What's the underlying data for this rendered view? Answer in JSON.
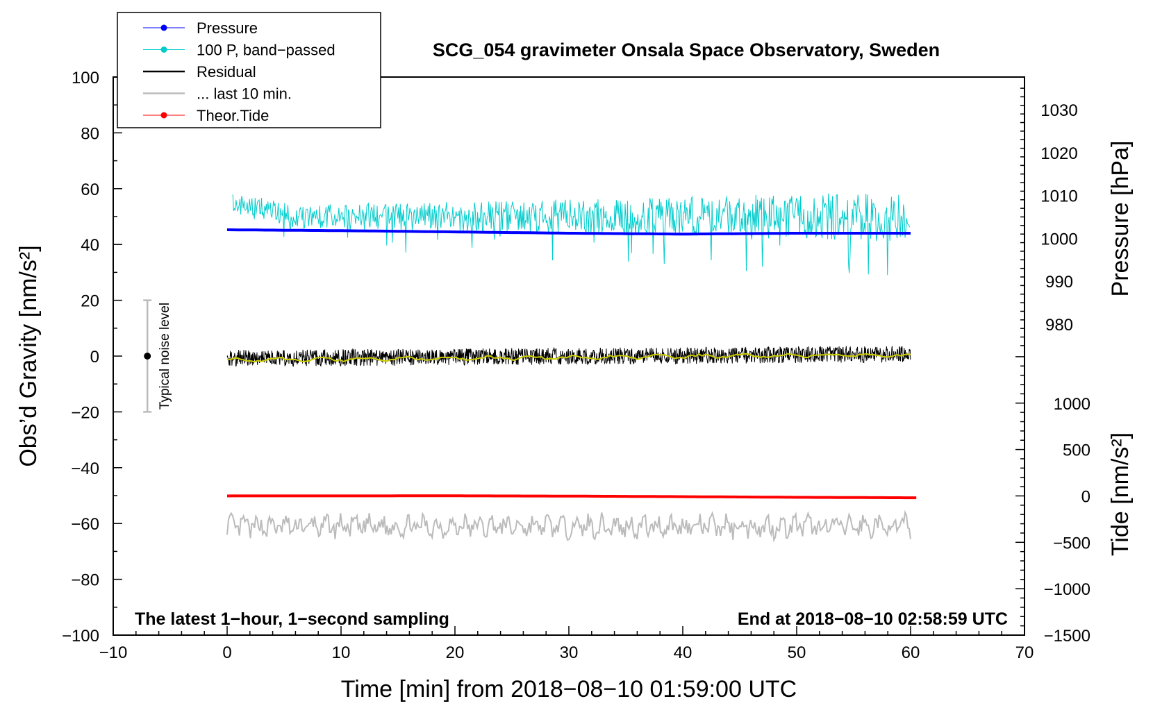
{
  "chart_data": {
    "type": "line",
    "title": "SCG_054 gravimeter Onsala Space Observatory, Sweden",
    "xlabel": "Time [min] from 2018−08−10 01:59:00 UTC",
    "ylabel_left": "Obs’d Gravity [nm/s²]",
    "ylabel_right_top": "Pressure [hPa]",
    "ylabel_right_bottom": "Tide [nm/s²]",
    "xlim": [
      -10,
      70
    ],
    "ylim_left": [
      -100,
      100
    ],
    "pressure_range": [
      975,
      1035
    ],
    "tide_range": [
      -1500,
      1500
    ],
    "x_ticks": [
      "−10",
      "0",
      "10",
      "20",
      "30",
      "40",
      "50",
      "60",
      "70"
    ],
    "y_ticks_left": [
      "100",
      "80",
      "60",
      "40",
      "20",
      "0",
      "−20",
      "−40",
      "−60",
      "−80",
      "−100"
    ],
    "pressure_ticks": [
      "1030",
      "1020",
      "1010",
      "1000",
      "990",
      "980"
    ],
    "tide_ticks": [
      "1000",
      "500",
      "0",
      "−500",
      "−1000",
      "−1500"
    ],
    "annotation_left": "The latest 1−hour, 1−second sampling",
    "annotation_right": "End at 2018−08−10 02:58:59 UTC",
    "noise_label": "Typical noise level",
    "noise_bar": {
      "x": -7,
      "center": 0,
      "half_range": 20
    },
    "legend": [
      {
        "label": "Pressure",
        "color": "#0000ff",
        "marker": true
      },
      {
        "label": "100 P, band−passed",
        "color": "#00cccc",
        "marker": true
      },
      {
        "label": "Residual",
        "color": "#000000",
        "marker": false
      },
      {
        "label": "... last 10 min.",
        "color": "#bbbbbb",
        "marker": false
      },
      {
        "label": "Theor.Tide",
        "color": "#ff0000",
        "marker": true
      }
    ],
    "series": [
      {
        "name": "Pressure",
        "axis": "pressure",
        "color": "#0000ff",
        "x": [
          0,
          10,
          20,
          30,
          40,
          50,
          60
        ],
        "values": [
          1002.0,
          1001.8,
          1001.5,
          1001.2,
          1001.0,
          1001.2,
          1001.2
        ]
      },
      {
        "name": "100 P, band−passed",
        "axis": "left",
        "color": "#00cccc",
        "x_range": [
          0.5,
          60
        ],
        "center": 50,
        "noise_amplitude": 6
      },
      {
        "name": "Residual",
        "axis": "left",
        "color": "#000000",
        "x_range": [
          0,
          60
        ],
        "center": 0,
        "noise_amplitude": 3
      },
      {
        "name": "Residual smoothed",
        "axis": "left",
        "color": "#cccc00",
        "x": [
          0,
          60
        ],
        "values": [
          -1.5,
          0.5
        ]
      },
      {
        "name": "... last 10 min.",
        "axis": "left",
        "color": "#bbbbbb",
        "x_range": [
          0,
          60
        ],
        "center": -61,
        "noise_amplitude": 3
      },
      {
        "name": "Theor.Tide",
        "axis": "tide",
        "color": "#ff0000",
        "x": [
          0,
          20,
          30,
          40,
          50,
          60.5
        ],
        "values": [
          0,
          1,
          -2,
          -8,
          -15,
          -20
        ]
      }
    ]
  }
}
